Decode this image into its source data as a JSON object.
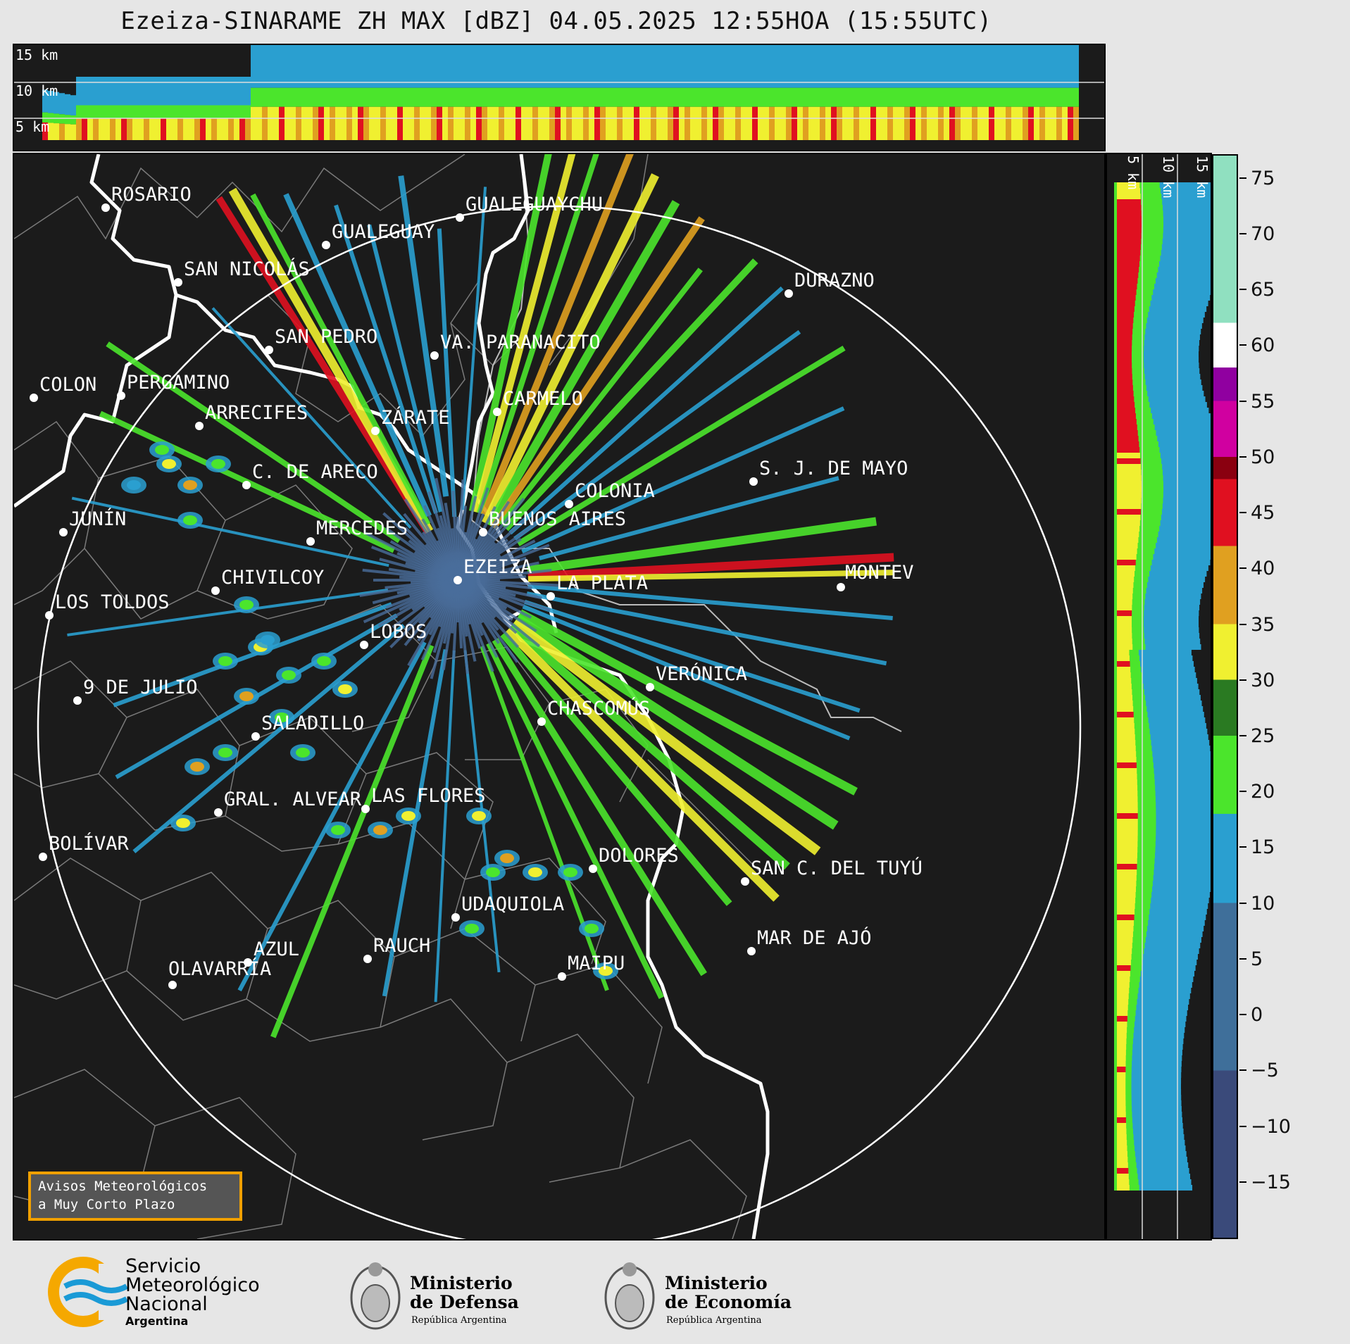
{
  "title": "Ezeiza-SINARAME ZH MAX [dBZ] 04.05.2025 12:55HOA (15:55UTC)",
  "top_panel": {
    "height_labels": [
      "15 km",
      "10 km",
      "5 km"
    ]
  },
  "side_panel": {
    "height_labels": [
      "5 km",
      "10 km",
      "15 km"
    ]
  },
  "colorbar": {
    "unit": "dBZ",
    "ticks": [
      "75",
      "70",
      "65",
      "60",
      "55",
      "50",
      "45",
      "40",
      "35",
      "30",
      "25",
      "20",
      "15",
      "10",
      "5",
      "0",
      "−5",
      "−10",
      "−15"
    ],
    "range": [
      -20,
      77
    ],
    "colors": [
      {
        "from": -20,
        "to": -5,
        "hex": "#3a4a7a"
      },
      {
        "from": -5,
        "to": 10,
        "hex": "#3f6f9a"
      },
      {
        "from": 10,
        "to": 18,
        "hex": "#2a9fd0"
      },
      {
        "from": 18,
        "to": 25,
        "hex": "#4be52c"
      },
      {
        "from": 25,
        "to": 30,
        "hex": "#2a7a22"
      },
      {
        "from": 30,
        "to": 35,
        "hex": "#f0f030"
      },
      {
        "from": 35,
        "to": 42,
        "hex": "#e0a020"
      },
      {
        "from": 42,
        "to": 48,
        "hex": "#e01020"
      },
      {
        "from": 48,
        "to": 50,
        "hex": "#8a0010"
      },
      {
        "from": 50,
        "to": 55,
        "hex": "#d000a0"
      },
      {
        "from": 55,
        "to": 58,
        "hex": "#9000a0"
      },
      {
        "from": 58,
        "to": 62,
        "hex": "#ffffff"
      },
      {
        "from": 62,
        "to": 77,
        "hex": "#90e0c0"
      }
    ]
  },
  "cities": [
    {
      "name": "ROSARIO"
    },
    {
      "name": "GUALEGUAYCHU"
    },
    {
      "name": "GUALEGUAY"
    },
    {
      "name": "SAN NICOLÁS"
    },
    {
      "name": "DURAZNO"
    },
    {
      "name": "SAN PEDRO"
    },
    {
      "name": "VA. PARANACITO"
    },
    {
      "name": "COLON"
    },
    {
      "name": "PERGAMINO"
    },
    {
      "name": "CARMELO"
    },
    {
      "name": "ARRECIFES"
    },
    {
      "name": "ZÁRATE"
    },
    {
      "name": "S. J. DE MAYO"
    },
    {
      "name": "C. DE ARECO"
    },
    {
      "name": "COLONIA"
    },
    {
      "name": "JUNÍN"
    },
    {
      "name": "BUENOS AIRES"
    },
    {
      "name": "MERCEDES"
    },
    {
      "name": "EZEIZA"
    },
    {
      "name": "MONTEV"
    },
    {
      "name": "CHIVILCOY"
    },
    {
      "name": "LA PLATA"
    },
    {
      "name": "LOS TOLDOS"
    },
    {
      "name": "LOBOS"
    },
    {
      "name": "VERÓNICA"
    },
    {
      "name": "9 DE JULIO"
    },
    {
      "name": "CHASCOMÚS"
    },
    {
      "name": "SALADILLO"
    },
    {
      "name": "GRAL. ALVEAR"
    },
    {
      "name": "LAS FLORES"
    },
    {
      "name": "BOLÍVAR"
    },
    {
      "name": "DOLORES"
    },
    {
      "name": "SAN C. DEL TUYÚ"
    },
    {
      "name": "UDAQUIOLA"
    },
    {
      "name": "RAUCH"
    },
    {
      "name": "MAR DE AJÓ"
    },
    {
      "name": "AZUL"
    },
    {
      "name": "OLAVARRÍA"
    },
    {
      "name": "MAIPU"
    }
  ],
  "alert_box": {
    "line1": "Avisos Meteorológicos",
    "line2": "a Muy Corto Plazo"
  },
  "logos": {
    "smn": {
      "line1": "Servicio",
      "line2": "Meteorológico",
      "line3": "Nacional",
      "line4": "Argentina"
    },
    "defensa": {
      "line1": "Ministerio",
      "line2": "de Defensa",
      "line3": "República Argentina"
    },
    "economia": {
      "line1": "Ministerio",
      "line2": "de Economía",
      "line3": "República Argentina"
    }
  },
  "accent_colors": {
    "alert_border": "#f0a000",
    "smn_orange": "#f5a800",
    "smn_blue": "#1a9ad6"
  }
}
